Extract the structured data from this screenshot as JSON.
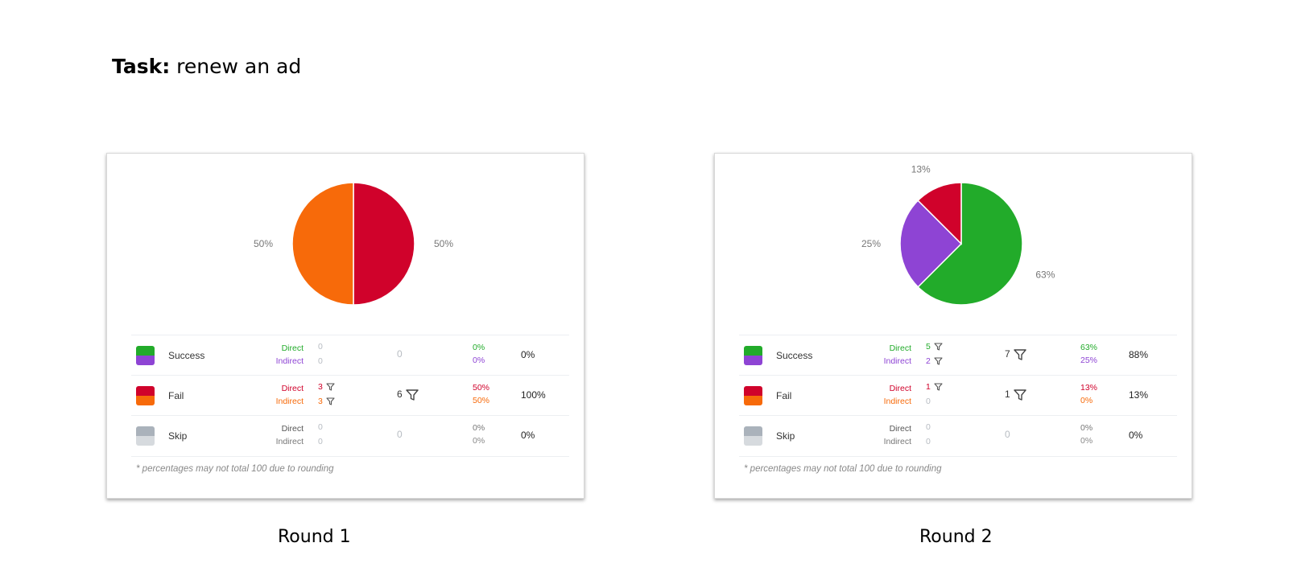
{
  "task": {
    "prefix": "Task:",
    "text": "renew an ad"
  },
  "labels": {
    "direct": "Direct",
    "indirect": "Indirect",
    "footnote": "* percentages may not total 100 due to rounding"
  },
  "colors": {
    "success_direct": "#22ab2a",
    "success_indirect": "#8e44d4",
    "fail_direct": "#d0022b",
    "fail_indirect": "#f76a0a",
    "skip_direct": "#aab2bb",
    "skip_indirect": "#d6dade",
    "zero": "#b7bcc2"
  },
  "chart_data": [
    {
      "type": "pie",
      "caption": "Round 1",
      "slices": [
        {
          "name": "Fail Direct",
          "value": 50,
          "label": "50%",
          "color": "#d0022b"
        },
        {
          "name": "Fail Indirect",
          "value": 50,
          "label": "50%",
          "color": "#f76a0a"
        }
      ],
      "table": [
        {
          "result": "Success",
          "direct_count": "0",
          "indirect_count": "0",
          "direct_filter": false,
          "indirect_filter": false,
          "total": "0",
          "total_filter": false,
          "direct_pct": "0%",
          "indirect_pct": "0%",
          "overall": "0%"
        },
        {
          "result": "Fail",
          "direct_count": "3",
          "indirect_count": "3",
          "direct_filter": true,
          "indirect_filter": true,
          "total": "6",
          "total_filter": true,
          "direct_pct": "50%",
          "indirect_pct": "50%",
          "overall": "100%"
        },
        {
          "result": "Skip",
          "direct_count": "0",
          "indirect_count": "0",
          "direct_filter": false,
          "indirect_filter": false,
          "total": "0",
          "total_filter": false,
          "direct_pct": "0%",
          "indirect_pct": "0%",
          "overall": "0%"
        }
      ]
    },
    {
      "type": "pie",
      "caption": "Round 2",
      "slices": [
        {
          "name": "Success Direct",
          "value": 62.5,
          "label": "63%",
          "color": "#22ab2a"
        },
        {
          "name": "Success Indirect",
          "value": 25,
          "label": "25%",
          "color": "#8e44d4"
        },
        {
          "name": "Fail Direct",
          "value": 12.5,
          "label": "13%",
          "color": "#d0022b"
        }
      ],
      "table": [
        {
          "result": "Success",
          "direct_count": "5",
          "indirect_count": "2",
          "direct_filter": true,
          "indirect_filter": true,
          "total": "7",
          "total_filter": true,
          "direct_pct": "63%",
          "indirect_pct": "25%",
          "overall": "88%"
        },
        {
          "result": "Fail",
          "direct_count": "1",
          "indirect_count": "0",
          "direct_filter": true,
          "indirect_filter": false,
          "total": "1",
          "total_filter": true,
          "direct_pct": "13%",
          "indirect_pct": "0%",
          "overall": "13%"
        },
        {
          "result": "Skip",
          "direct_count": "0",
          "indirect_count": "0",
          "direct_filter": false,
          "indirect_filter": false,
          "total": "0",
          "total_filter": false,
          "direct_pct": "0%",
          "indirect_pct": "0%",
          "overall": "0%"
        }
      ]
    }
  ]
}
